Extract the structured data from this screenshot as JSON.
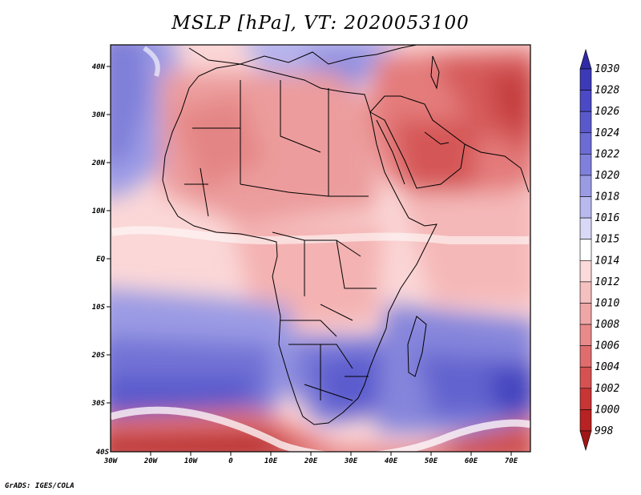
{
  "title": "MSLP [hPa], VT: 2020053100",
  "credit": "GrADS: IGES/COLA",
  "lat_ticks": [
    "40N",
    "30N",
    "20N",
    "10N",
    "EQ",
    "10S",
    "20S",
    "30S",
    "40S"
  ],
  "lon_ticks": [
    "30W",
    "20W",
    "10W",
    "0",
    "10E",
    "20E",
    "30E",
    "40E",
    "50E",
    "60E",
    "70E"
  ],
  "colorbar": {
    "levels": [
      "1030",
      "1028",
      "1026",
      "1024",
      "1022",
      "1020",
      "1018",
      "1016",
      "1015",
      "1014",
      "1012",
      "1010",
      "1008",
      "1006",
      "1004",
      "1002",
      "1000",
      "998"
    ],
    "colors": [
      "#2f2ba6",
      "#3d3ab8",
      "#4b4ac4",
      "#5a59cc",
      "#6c6cd4",
      "#8080dc",
      "#9b9be4",
      "#b9b9ee",
      "#d9d9f7",
      "#ffffff",
      "#fadada",
      "#f5c0c0",
      "#efa6a6",
      "#e98a8a",
      "#e06d6d",
      "#d65252",
      "#c93535",
      "#b82222",
      "#a01616"
    ]
  }
}
